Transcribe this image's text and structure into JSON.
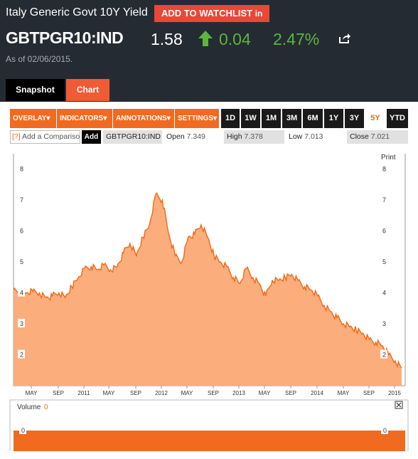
{
  "header": {
    "title": "Italy Generic Govt 10Y Yield",
    "watchlist_label": "ADD TO WATCHLIST",
    "watchlist_badge": "in",
    "ticker": "GBTPGR10:IND",
    "price": "1.58",
    "change": "0.04",
    "change_pct": "2.47%",
    "as_of": "As of 02/06/2015.",
    "direction_icon": "up-arrow-icon",
    "share_icon": "share-icon",
    "up_color": "#5cb53f"
  },
  "tabs": {
    "snapshot": "Snapshot",
    "chart": "Chart"
  },
  "toolbar": {
    "menus": [
      "OVERLAY",
      "INDICATORS",
      "ANNOTATIONS",
      "SETTINGS"
    ],
    "menu_caret": "▾",
    "periods": [
      "1D",
      "1W",
      "1M",
      "3M",
      "6M",
      "1Y",
      "3Y",
      "5Y",
      "YTD"
    ],
    "active_period": "5Y",
    "accent": "#f26a1f"
  },
  "compare": {
    "help": "[?]",
    "placeholder": "Add a Comparison",
    "add_label": "Add",
    "symbol": "GBTPGR10:IND",
    "open_label": "Open",
    "open": "7.349",
    "high_label": "High",
    "high": "7.378",
    "low_label": "Low",
    "low": "7.013",
    "close_label": "Close",
    "close": "7.021"
  },
  "print_label": "Print",
  "volume": {
    "label": "Volume",
    "value": "0",
    "close_icon": "close-icon"
  },
  "chart_data": {
    "type": "area",
    "y_ticks": [
      2,
      3,
      4,
      5,
      6,
      7,
      8
    ],
    "volume_ticks": [
      0
    ],
    "x_ticks": [
      "MAY",
      "SEP",
      "2011",
      "MAY",
      "SEP",
      "2012",
      "MAY",
      "SEP",
      "2013",
      "MAY",
      "SEP",
      "2014",
      "MAY",
      "SEP",
      "2015"
    ],
    "ylim": [
      1.0,
      8.5
    ],
    "x": [
      "2010-02",
      "2010-03",
      "2010-04",
      "2010-05",
      "2010-06",
      "2010-07",
      "2010-08",
      "2010-09",
      "2010-10",
      "2010-11",
      "2010-12",
      "2011-01",
      "2011-02",
      "2011-03",
      "2011-04",
      "2011-05",
      "2011-06",
      "2011-07",
      "2011-08",
      "2011-09",
      "2011-10",
      "2011-11",
      "2011-12",
      "2012-01",
      "2012-02",
      "2012-03",
      "2012-04",
      "2012-05",
      "2012-06",
      "2012-07",
      "2012-08",
      "2012-09",
      "2012-10",
      "2012-11",
      "2012-12",
      "2013-01",
      "2013-02",
      "2013-03",
      "2013-04",
      "2013-05",
      "2013-06",
      "2013-07",
      "2013-08",
      "2013-09",
      "2013-10",
      "2013-11",
      "2013-12",
      "2014-01",
      "2014-02",
      "2014-03",
      "2014-04",
      "2014-05",
      "2014-06",
      "2014-07",
      "2014-08",
      "2014-09",
      "2014-10",
      "2014-11",
      "2014-12",
      "2015-01",
      "2015-02"
    ],
    "values": [
      4.1,
      4.05,
      4.0,
      4.05,
      4.0,
      3.85,
      3.9,
      4.0,
      3.85,
      4.2,
      4.5,
      4.8,
      4.85,
      4.75,
      4.9,
      4.75,
      4.85,
      5.3,
      5.6,
      5.2,
      5.8,
      6.2,
      7.2,
      7.0,
      5.9,
      5.2,
      5.0,
      5.8,
      5.9,
      6.2,
      5.8,
      5.2,
      5.0,
      4.85,
      4.5,
      4.3,
      4.8,
      4.5,
      4.3,
      3.9,
      4.4,
      4.4,
      4.5,
      4.6,
      4.4,
      4.2,
      4.1,
      3.9,
      3.6,
      3.4,
      3.2,
      3.0,
      2.9,
      2.8,
      2.7,
      2.5,
      2.4,
      2.3,
      2.0,
      1.8,
      1.58
    ],
    "volume_values": [
      0
    ],
    "fill_color": "#fbad7c",
    "line_color": "#ef6a18"
  }
}
